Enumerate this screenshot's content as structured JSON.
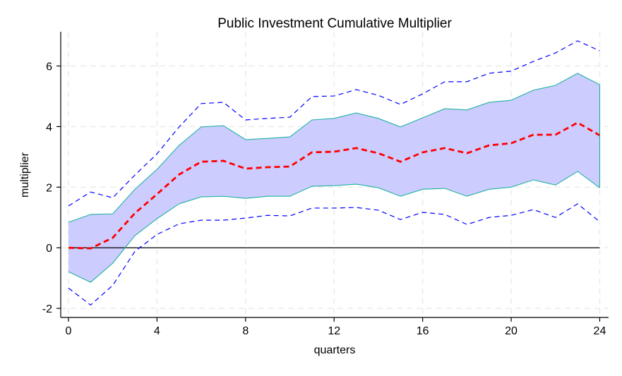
{
  "chart_data": {
    "type": "line",
    "title": "Public Investment Cumulative Multiplier",
    "xlabel": "quarters",
    "ylabel": "multiplier",
    "xlim": [
      -0.35,
      24.4
    ],
    "ylim": [
      -2.3,
      7.13
    ],
    "xticks": [
      0,
      4,
      8,
      12,
      16,
      20,
      24
    ],
    "yticks": [
      -2,
      0,
      2,
      4,
      6
    ],
    "grid": true,
    "reference_line_y": 0,
    "x": [
      0,
      1,
      2,
      3,
      4,
      5,
      6,
      7,
      8,
      9,
      10,
      11,
      12,
      13,
      14,
      15,
      16,
      17,
      18,
      19,
      20,
      21,
      22,
      23,
      24
    ],
    "series": [
      {
        "role": "point-estimate",
        "style": "dashed",
        "color": "#ff0000",
        "values": [
          0.0,
          -0.02,
          0.33,
          1.14,
          1.77,
          2.42,
          2.84,
          2.87,
          2.61,
          2.66,
          2.68,
          3.15,
          3.17,
          3.29,
          3.12,
          2.84,
          3.15,
          3.29,
          3.12,
          3.38,
          3.45,
          3.73,
          3.73,
          4.13,
          3.71
        ]
      },
      {
        "role": "inner-band-upper",
        "color": "#20b2a0",
        "values": [
          0.84,
          1.1,
          1.12,
          1.93,
          2.59,
          3.38,
          3.99,
          4.03,
          3.57,
          3.61,
          3.66,
          4.22,
          4.27,
          4.45,
          4.27,
          3.99,
          4.29,
          4.59,
          4.55,
          4.8,
          4.87,
          5.2,
          5.36,
          5.76,
          5.38
        ]
      },
      {
        "role": "inner-band-lower",
        "color": "#20b2a0",
        "values": [
          -0.79,
          -1.14,
          -0.51,
          0.4,
          0.96,
          1.45,
          1.68,
          1.7,
          1.63,
          1.7,
          1.7,
          2.03,
          2.05,
          2.1,
          1.98,
          1.7,
          1.93,
          1.96,
          1.7,
          1.93,
          2.0,
          2.24,
          2.07,
          2.52,
          1.98
        ]
      },
      {
        "role": "outer-band-upper",
        "style": "dashed",
        "color": "#0000ff",
        "values": [
          1.38,
          1.84,
          1.65,
          2.4,
          3.1,
          3.99,
          4.76,
          4.8,
          4.22,
          4.27,
          4.31,
          4.99,
          5.01,
          5.22,
          5.03,
          4.73,
          5.08,
          5.48,
          5.48,
          5.76,
          5.83,
          6.15,
          6.43,
          6.83,
          6.5
        ]
      },
      {
        "role": "outer-band-lower",
        "style": "dashed",
        "color": "#0000ff",
        "values": [
          -1.33,
          -1.89,
          -1.24,
          -0.12,
          0.44,
          0.79,
          0.91,
          0.91,
          0.98,
          1.07,
          1.05,
          1.31,
          1.31,
          1.33,
          1.24,
          0.93,
          1.17,
          1.1,
          0.77,
          1.0,
          1.07,
          1.26,
          1.0,
          1.45,
          0.86
        ]
      }
    ],
    "band_fill_color": "#ccccff"
  }
}
